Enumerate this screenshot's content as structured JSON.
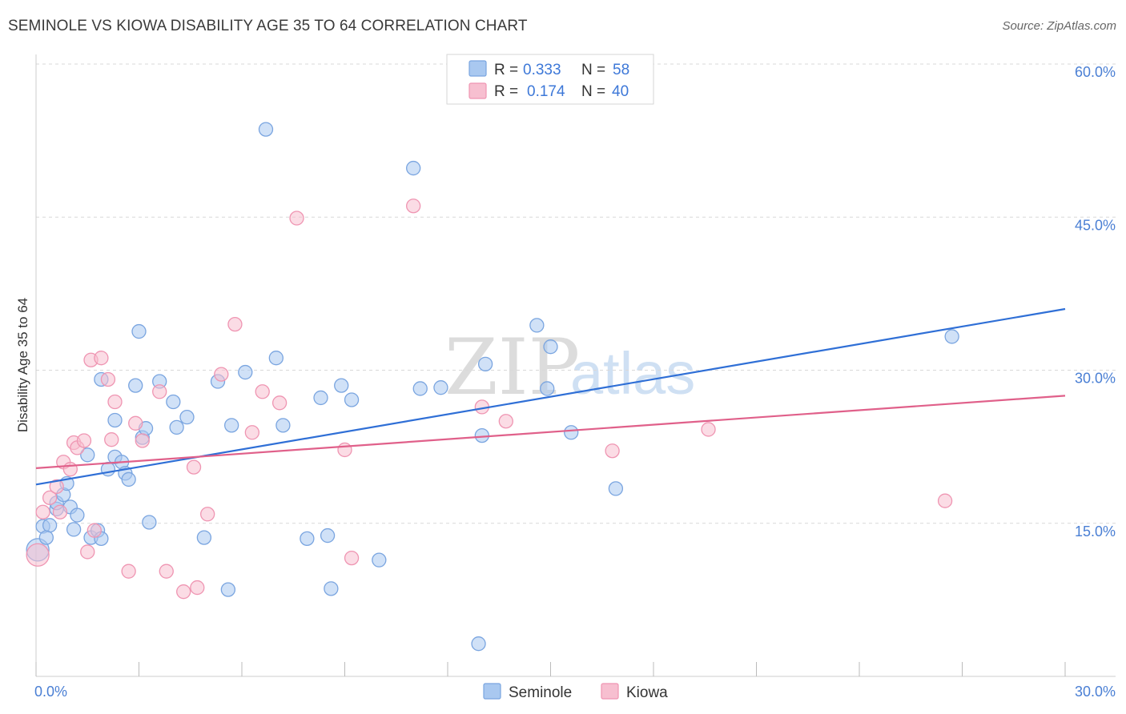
{
  "title": "SEMINOLE VS KIOWA DISABILITY AGE 35 TO 64 CORRELATION CHART",
  "source": "Source: ZipAtlas.com",
  "colors": {
    "seminole_fill": "#a9c8f0",
    "seminole_stroke": "#7aa5e0",
    "seminole_line": "#2f6fd6",
    "kiowa_fill": "#f7bfd0",
    "kiowa_stroke": "#ef95b2",
    "kiowa_line": "#e0608a",
    "tick_label": "#4a7fd4",
    "grid": "#d9d9d9"
  },
  "chart_data": {
    "type": "scatter",
    "title": "SEMINOLE VS KIOWA DISABILITY AGE 35 TO 64 CORRELATION CHART",
    "xlabel": "",
    "ylabel": "Disability Age 35 to 64",
    "xlim": [
      0,
      30
    ],
    "ylim": [
      0,
      60
    ],
    "x_tick_labels": [
      {
        "value": 0,
        "label": "0.0%"
      },
      {
        "value": 30,
        "label": "30.0%"
      }
    ],
    "y_tick_labels": [
      {
        "value": 15,
        "label": "15.0%"
      },
      {
        "value": 30,
        "label": "30.0%"
      },
      {
        "value": 45,
        "label": "45.0%"
      },
      {
        "value": 60,
        "label": "60.0%"
      }
    ],
    "watermark": {
      "part1": "ZIP",
      "part2": "atlas"
    },
    "stats": [
      {
        "r_label": "R =",
        "r_value": "0.333",
        "n_label": "N =",
        "n_value": "58"
      },
      {
        "r_label": "R =",
        "r_value": "0.174",
        "n_label": "N =",
        "n_value": "40"
      }
    ],
    "legend": [
      "Seminole",
      "Kiowa"
    ],
    "series": [
      {
        "name": "Seminole",
        "trend": {
          "x0": 0,
          "y0": 18.8,
          "x1": 30,
          "y1": 36.0
        },
        "points": [
          [
            0.2,
            14.7
          ],
          [
            0.4,
            14.8
          ],
          [
            0.6,
            16.4
          ],
          [
            0.6,
            17.0
          ],
          [
            0.8,
            17.8
          ],
          [
            0.9,
            18.9
          ],
          [
            1.0,
            16.6
          ],
          [
            1.1,
            14.4
          ],
          [
            1.2,
            15.8
          ],
          [
            1.5,
            21.7
          ],
          [
            1.6,
            13.6
          ],
          [
            1.8,
            14.3
          ],
          [
            1.9,
            13.5
          ],
          [
            1.9,
            29.1
          ],
          [
            2.1,
            20.3
          ],
          [
            2.3,
            25.1
          ],
          [
            2.3,
            21.5
          ],
          [
            2.5,
            21.0
          ],
          [
            2.6,
            19.9
          ],
          [
            2.7,
            19.3
          ],
          [
            2.9,
            28.5
          ],
          [
            3.0,
            33.8
          ],
          [
            3.1,
            23.4
          ],
          [
            3.2,
            24.3
          ],
          [
            3.3,
            15.1
          ],
          [
            3.6,
            28.9
          ],
          [
            4.0,
            26.9
          ],
          [
            4.1,
            24.4
          ],
          [
            4.4,
            25.4
          ],
          [
            4.9,
            13.6
          ],
          [
            5.3,
            28.9
          ],
          [
            5.6,
            8.5
          ],
          [
            5.7,
            24.6
          ],
          [
            6.1,
            29.8
          ],
          [
            6.7,
            53.6
          ],
          [
            7.0,
            31.2
          ],
          [
            7.2,
            24.6
          ],
          [
            7.9,
            13.5
          ],
          [
            8.3,
            27.3
          ],
          [
            8.5,
            13.8
          ],
          [
            8.6,
            8.6
          ],
          [
            8.9,
            28.5
          ],
          [
            9.2,
            27.1
          ],
          [
            10.0,
            11.4
          ],
          [
            11.0,
            49.8
          ],
          [
            11.2,
            28.2
          ],
          [
            11.8,
            28.3
          ],
          [
            12.9,
            3.2
          ],
          [
            13.0,
            23.6
          ],
          [
            13.1,
            30.6
          ],
          [
            14.6,
            34.4
          ],
          [
            14.9,
            28.2
          ],
          [
            15.0,
            32.3
          ],
          [
            15.6,
            23.9
          ],
          [
            16.9,
            18.4
          ],
          [
            26.7,
            33.3
          ],
          [
            0.05,
            12.4
          ],
          [
            0.3,
            13.6
          ]
        ]
      },
      {
        "name": "Kiowa",
        "trend": {
          "x0": 0,
          "y0": 20.4,
          "x1": 30,
          "y1": 27.5
        },
        "points": [
          [
            0.05,
            11.9
          ],
          [
            0.2,
            16.1
          ],
          [
            0.4,
            17.5
          ],
          [
            0.6,
            18.6
          ],
          [
            0.7,
            16.1
          ],
          [
            0.8,
            21.0
          ],
          [
            1.0,
            20.3
          ],
          [
            1.1,
            22.9
          ],
          [
            1.2,
            22.4
          ],
          [
            1.4,
            23.1
          ],
          [
            1.5,
            12.2
          ],
          [
            1.6,
            31.0
          ],
          [
            1.7,
            14.3
          ],
          [
            1.9,
            31.2
          ],
          [
            2.1,
            29.1
          ],
          [
            2.2,
            23.2
          ],
          [
            2.3,
            26.9
          ],
          [
            2.7,
            10.3
          ],
          [
            2.9,
            24.8
          ],
          [
            3.1,
            23.1
          ],
          [
            3.6,
            27.9
          ],
          [
            3.8,
            10.3
          ],
          [
            4.3,
            8.3
          ],
          [
            4.6,
            20.5
          ],
          [
            4.7,
            8.7
          ],
          [
            5.0,
            15.9
          ],
          [
            5.4,
            29.6
          ],
          [
            5.8,
            34.5
          ],
          [
            6.3,
            23.9
          ],
          [
            6.6,
            27.9
          ],
          [
            7.1,
            26.8
          ],
          [
            7.6,
            44.9
          ],
          [
            9.0,
            22.2
          ],
          [
            9.2,
            11.6
          ],
          [
            11.0,
            46.1
          ],
          [
            13.0,
            26.4
          ],
          [
            13.7,
            25.0
          ],
          [
            16.8,
            22.1
          ],
          [
            19.6,
            24.2
          ],
          [
            26.5,
            17.2
          ]
        ]
      }
    ]
  }
}
